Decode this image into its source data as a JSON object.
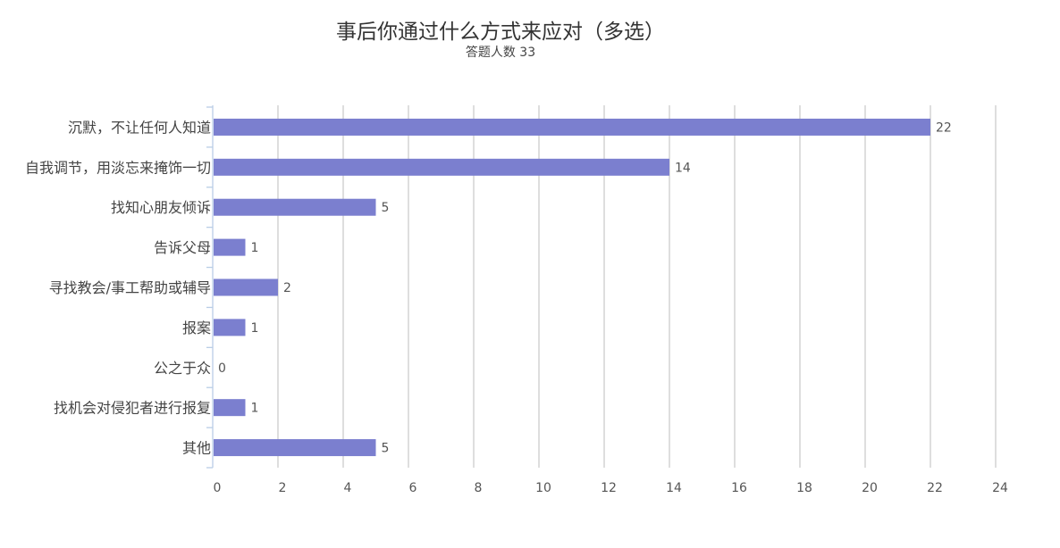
{
  "chart_data": {
    "type": "bar",
    "orientation": "horizontal",
    "title": "事后你通过什么方式来应对（多选）",
    "subtitle": "答题人数 33",
    "categories": [
      "沉默，不让任何人知道",
      "自我调节，用淡忘来掩饰一切",
      "找知心朋友倾诉",
      "告诉父母",
      "寻找教会/事工帮助或辅导",
      "报案",
      "公之于众",
      "找机会对侵犯者进行报复",
      "其他"
    ],
    "values": [
      22,
      14,
      5,
      1,
      2,
      1,
      0,
      1,
      5
    ],
    "xlim": [
      0,
      24
    ],
    "xticks": [
      0,
      2,
      4,
      6,
      8,
      10,
      12,
      14,
      16,
      18,
      20,
      22,
      24
    ],
    "grid": true,
    "colors": {
      "bar": "#7b7fcf",
      "grid": "#cccccc",
      "axis": "#b9cde6"
    }
  }
}
